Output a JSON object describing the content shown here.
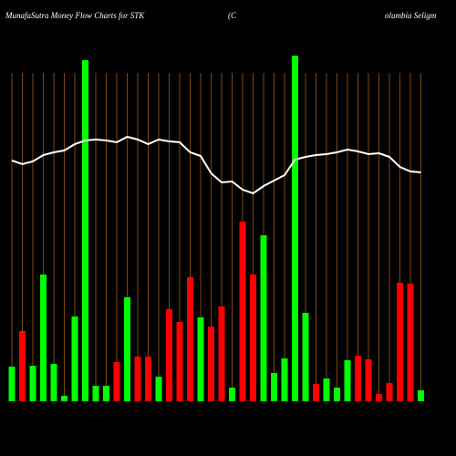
{
  "chart_data": {
    "type": "bar",
    "title": "MunafaSutra  Money  Flow  Charts for STK",
    "company": [
      "(C",
      "olumbia  Seligm"
    ],
    "ylim": [
      0,
      380
    ],
    "background": "#000000",
    "grid": true,
    "grid_color": "#b5651d",
    "bars": {
      "values": [
        38,
        77,
        39,
        139,
        41,
        6,
        93,
        374,
        17,
        17,
        43,
        114,
        49,
        49,
        27,
        101,
        87,
        136,
        92,
        82,
        104,
        15,
        197,
        139,
        182,
        31,
        47,
        379,
        97,
        19,
        25,
        15,
        45,
        50,
        46,
        8,
        20,
        130,
        129,
        12
      ],
      "colors": [
        "#00ff00",
        "#ff0000",
        "#00ff00",
        "#00ff00",
        "#00ff00",
        "#00ff00",
        "#00ff00",
        "#00ff00",
        "#00ff00",
        "#00ff00",
        "#ff0000",
        "#00ff00",
        "#ff0000",
        "#ff0000",
        "#00ff00",
        "#ff0000",
        "#ff0000",
        "#ff0000",
        "#00ff00",
        "#ff0000",
        "#ff0000",
        "#00ff00",
        "#ff0000",
        "#ff0000",
        "#00ff00",
        "#00ff00",
        "#00ff00",
        "#00ff00",
        "#00ff00",
        "#ff0000",
        "#00ff00",
        "#00ff00",
        "#00ff00",
        "#ff0000",
        "#ff0000",
        "#ff0000",
        "#ff0000",
        "#ff0000",
        "#ff0000",
        "#00ff00"
      ]
    },
    "line": {
      "color": "#ffffff",
      "values": [
        264,
        260,
        263,
        270,
        273,
        275,
        282,
        286,
        287,
        286,
        284,
        290,
        287,
        282,
        287,
        285,
        284,
        273,
        269,
        250,
        240,
        241,
        232,
        228,
        236,
        242,
        248,
        265,
        268,
        270,
        271,
        273,
        276,
        274,
        271,
        272,
        268,
        257,
        252,
        251
      ]
    }
  }
}
